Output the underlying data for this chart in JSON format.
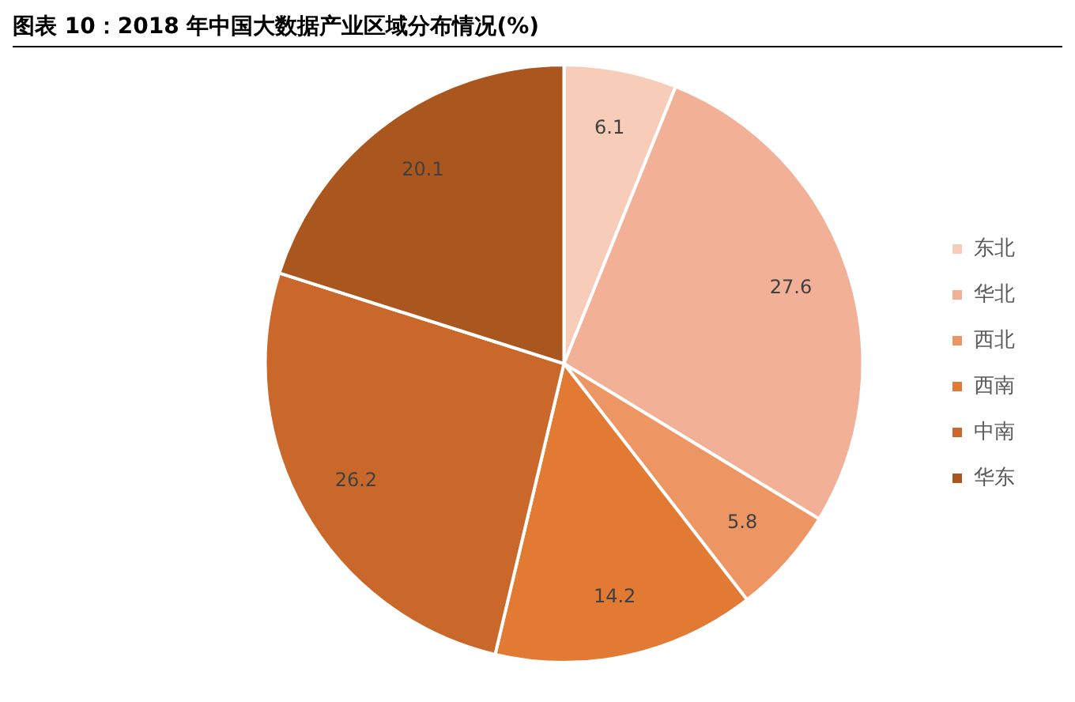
{
  "chart_data": {
    "type": "pie",
    "title": "图表 10：2018 年中国大数据产业区域分布情况(%)",
    "categories": [
      "东北",
      "华北",
      "西北",
      "西南",
      "中南",
      "华东"
    ],
    "values": [
      6.1,
      27.6,
      5.8,
      14.2,
      26.2,
      20.1
    ],
    "colors": [
      "#f7cdb9",
      "#f2b197",
      "#ee9564",
      "#e27a33",
      "#c9682a",
      "#a9561f"
    ],
    "data_labels": true,
    "legend": "right"
  }
}
